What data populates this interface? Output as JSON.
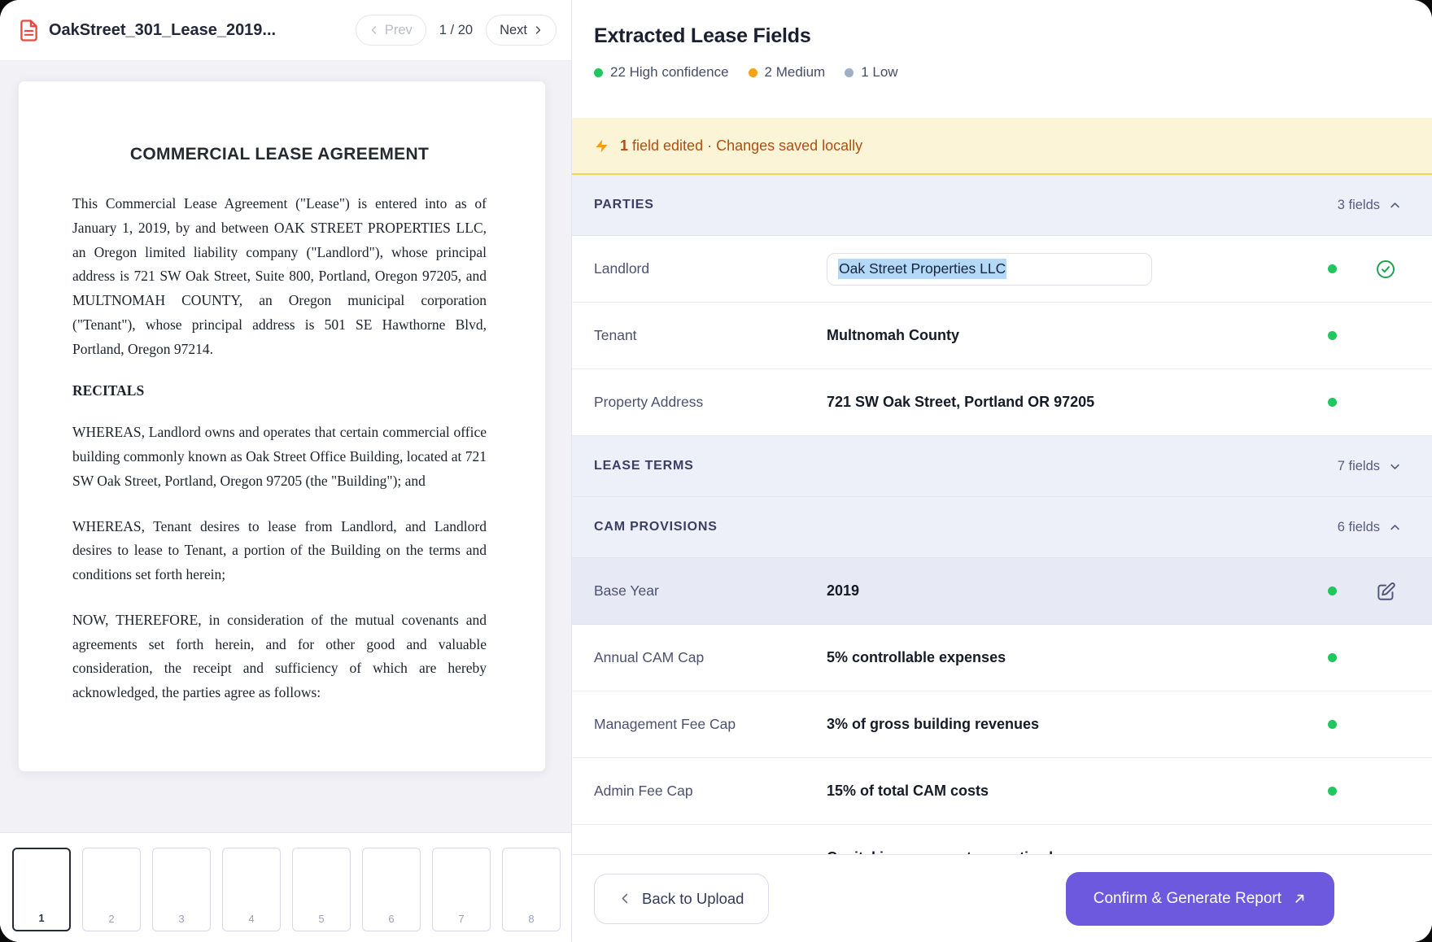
{
  "viewer": {
    "doc_title": "OakStreet_301_Lease_2019...",
    "prev_label": "Prev",
    "page_indicator": "1 / 20",
    "next_label": "Next",
    "document": {
      "title": "COMMERCIAL LEASE AGREEMENT",
      "recitals_heading": "RECITALS",
      "paragraphs": [
        "This Commercial Lease Agreement (\"Lease\") is entered into as of January 1, 2019, by and between OAK STREET PROPERTIES LLC, an Oregon limited liability company (\"Landlord\"), whose principal address is 721 SW Oak Street, Suite 800, Portland, Oregon 97205, and MULTNOMAH COUNTY, an Oregon municipal corporation (\"Tenant\"), whose principal address is 501 SE Hawthorne Blvd, Portland, Oregon 97214.",
        "WHEREAS, Landlord owns and operates that certain commercial office building commonly known as Oak Street Office Building, located at 721 SW Oak Street, Portland, Oregon 97205 (the \"Building\"); and",
        "WHEREAS, Tenant desires to lease from Landlord, and Landlord desires to lease to Tenant, a portion of the Building on the terms and conditions set forth herein;",
        "NOW, THEREFORE, in consideration of the mutual covenants and agreements set forth herein, and for other good and valuable consideration, the receipt and sufficiency of which are hereby acknowledged, the parties agree as follows:"
      ]
    },
    "thumbnails": [
      {
        "num": "1",
        "active": true
      },
      {
        "num": "2",
        "active": false
      },
      {
        "num": "3",
        "active": false
      },
      {
        "num": "4",
        "active": false
      },
      {
        "num": "5",
        "active": false
      },
      {
        "num": "6",
        "active": false
      },
      {
        "num": "7",
        "active": false
      },
      {
        "num": "8",
        "active": false
      }
    ]
  },
  "panel": {
    "title": "Extracted Lease Fields",
    "legend": [
      {
        "label": "22 High confidence",
        "color": "#22c55e"
      },
      {
        "label": "2 Medium",
        "color": "#f7a11b"
      },
      {
        "label": "1 Low",
        "color": "#9fb0c4"
      }
    ],
    "alert": {
      "bold": "1",
      "rest": "field edited · Changes saved locally"
    },
    "colors": {
      "high_dot": "#22c55e",
      "accent": "#6c59dd",
      "alert_bg": "#fcf4d7",
      "alert_text": "#b04f10"
    },
    "sections": [
      {
        "name": "PARTIES",
        "count": "3 fields",
        "chevron": "up",
        "rows": [
          {
            "label": "Landlord",
            "value": "Oak Street Properties LLC",
            "type": "input",
            "dot": "#22c55e",
            "icon": "check"
          },
          {
            "label": "Tenant",
            "value": "Multnomah County",
            "dot": "#22c55e"
          },
          {
            "label": "Property Address",
            "value": "721 SW Oak Street, Portland OR 97205",
            "dot": "#22c55e"
          }
        ]
      },
      {
        "name": "LEASE TERMS",
        "count": "7 fields",
        "chevron": "down",
        "rows": []
      },
      {
        "name": "CAM PROVISIONS",
        "count": "6 fields",
        "chevron": "up",
        "rows": [
          {
            "label": "Base Year",
            "value": "2019",
            "dot": "#22c55e",
            "icon": "edit",
            "highlight": true
          },
          {
            "label": "Annual CAM Cap",
            "value": "5% controllable expenses",
            "dot": "#22c55e"
          },
          {
            "label": "Management Fee Cap",
            "value": "3% of gross building revenues",
            "dot": "#22c55e"
          },
          {
            "label": "Admin Fee Cap",
            "value": "15% of total CAM costs",
            "dot": "#22c55e"
          },
          {
            "label": "",
            "value": "Capital improvements amortized over...",
            "partial": true
          }
        ]
      }
    ],
    "footer": {
      "back": "Back to Upload",
      "confirm": "Confirm & Generate Report"
    }
  }
}
